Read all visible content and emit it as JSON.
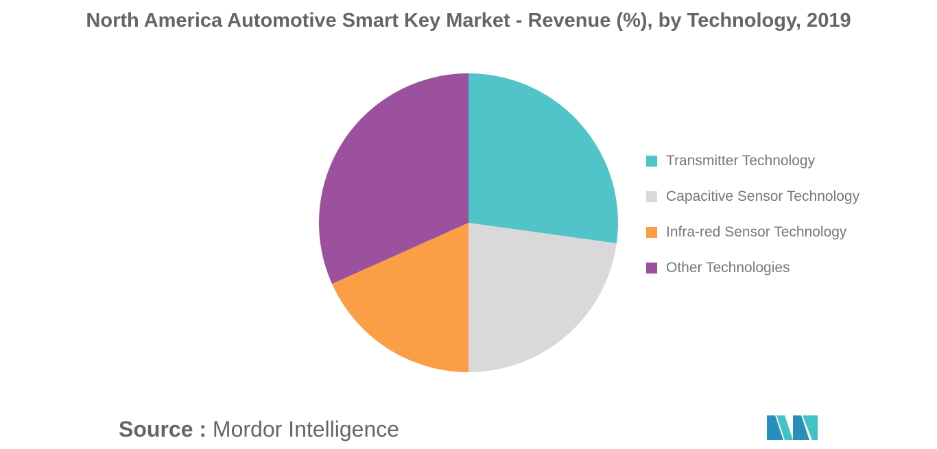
{
  "chart_data": {
    "type": "pie",
    "title": "North America Automotive Smart Key Market - Revenue (%), by Technology, 2019",
    "categories": [
      "Transmitter Technology",
      "Capacitive Sensor Technology",
      "Infra-red Sensor Technology",
      "Other Technologies"
    ],
    "values": [
      27.2,
      22.8,
      18.3,
      31.7
    ],
    "colors": [
      "#50c4c9",
      "#d9d9d9",
      "#fb9f47",
      "#9b519e"
    ],
    "legend_position": "right"
  },
  "source": {
    "label": "Source :",
    "value": "Mordor Intelligence"
  },
  "logo": {
    "colors": [
      "#2a8fb8",
      "#40c2c6"
    ]
  }
}
